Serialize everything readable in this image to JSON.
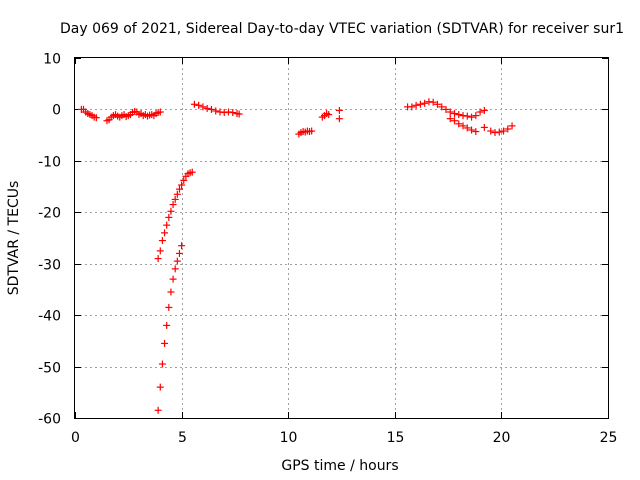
{
  "chart_data": {
    "type": "scatter",
    "title": "Day 069 of 2021, Sidereal Day-to-day VTEC variation (SDTVAR) for receiver sur1",
    "xlabel": "GPS time / hours",
    "ylabel": "SDTVAR / TECUs",
    "xlim": [
      0,
      25
    ],
    "ylim": [
      -60,
      10
    ],
    "xticks": [
      0,
      5,
      10,
      15,
      20,
      25
    ],
    "yticks": [
      10,
      0,
      -10,
      -20,
      -30,
      -40,
      -50,
      -60
    ],
    "xtick_labels": [
      "0",
      "5",
      "10",
      "15",
      "20",
      "25"
    ],
    "ytick_labels": [
      "10",
      "0",
      "-10",
      "-20",
      "-30",
      "-40",
      "-50",
      "-60"
    ],
    "grid": true,
    "marker": "+",
    "color": "#ff0000",
    "series": [
      {
        "name": "sdtvar",
        "x": [
          0.3,
          0.4,
          0.5,
          0.6,
          0.7,
          0.8,
          0.9,
          1.0,
          1.5,
          1.6,
          1.7,
          1.8,
          1.9,
          2.0,
          2.1,
          2.2,
          2.3,
          2.4,
          2.5,
          2.6,
          2.7,
          2.8,
          2.9,
          3.0,
          3.1,
          3.2,
          3.3,
          3.4,
          3.5,
          3.6,
          3.7,
          3.8,
          3.9,
          4.0,
          5.6,
          5.8,
          6.0,
          6.2,
          6.4,
          6.6,
          6.8,
          7.0,
          7.2,
          7.4,
          7.6,
          7.7,
          10.5,
          10.6,
          10.7,
          10.8,
          10.9,
          11.0,
          11.1,
          11.6,
          11.7,
          11.8,
          11.9,
          12.4,
          12.4,
          15.6,
          15.8,
          16.0,
          16.2,
          16.4,
          16.6,
          16.8,
          17.0,
          17.2,
          17.4,
          17.6,
          17.8,
          18.0,
          18.2,
          18.4,
          18.6,
          18.8,
          19.0,
          19.2,
          17.6,
          17.8,
          18.0,
          18.2,
          18.4,
          18.6,
          18.8,
          19.2,
          19.5,
          19.7,
          19.9,
          20.1,
          20.3,
          20.5,
          3.9,
          4.0,
          4.1,
          4.2,
          4.3,
          4.4,
          4.5,
          4.6,
          4.7,
          4.8,
          4.9,
          5.0,
          5.1,
          5.2,
          5.3,
          5.4,
          5.5,
          3.9,
          4.0,
          4.1,
          4.2,
          4.3,
          4.4,
          4.5,
          4.6,
          4.7,
          4.8,
          4.9,
          5.0
        ],
        "y": [
          0.0,
          0.0,
          -0.5,
          -0.8,
          -1.0,
          -1.2,
          -1.5,
          -1.6,
          -2.2,
          -2.0,
          -1.5,
          -1.2,
          -1.0,
          -1.3,
          -1.5,
          -1.2,
          -1.0,
          -1.4,
          -1.2,
          -1.0,
          -0.6,
          -0.4,
          -0.5,
          -1.0,
          -0.8,
          -1.2,
          -1.0,
          -1.3,
          -1.1,
          -1.0,
          -1.2,
          -0.8,
          -0.6,
          -0.5,
          1.0,
          0.8,
          0.5,
          0.2,
          0.0,
          -0.3,
          -0.5,
          -0.6,
          -0.5,
          -0.6,
          -0.8,
          -0.9,
          -4.8,
          -4.5,
          -4.3,
          -4.4,
          -4.2,
          -4.3,
          -4.2,
          -1.5,
          -1.2,
          -0.8,
          -1.0,
          -0.2,
          -1.8,
          0.5,
          0.5,
          0.8,
          1.0,
          1.2,
          1.5,
          1.4,
          1.0,
          0.5,
          0.0,
          -0.5,
          -0.8,
          -1.0,
          -1.2,
          -1.3,
          -1.5,
          -1.2,
          -0.5,
          -0.2,
          -1.8,
          -2.2,
          -2.8,
          -3.2,
          -3.6,
          -4.0,
          -4.3,
          -3.5,
          -4.2,
          -4.5,
          -4.4,
          -4.2,
          -3.8,
          -3.2,
          -29.0,
          -27.5,
          -25.5,
          -24.0,
          -22.5,
          -21.0,
          -19.8,
          -18.5,
          -17.5,
          -16.5,
          -15.5,
          -14.7,
          -13.8,
          -13.0,
          -12.5,
          -12.3,
          -12.2,
          -58.5,
          -54.0,
          -49.5,
          -45.5,
          -42.0,
          -38.5,
          -35.5,
          -33.0,
          -31.0,
          -29.5,
          -28.0,
          -26.5
        ]
      }
    ]
  }
}
